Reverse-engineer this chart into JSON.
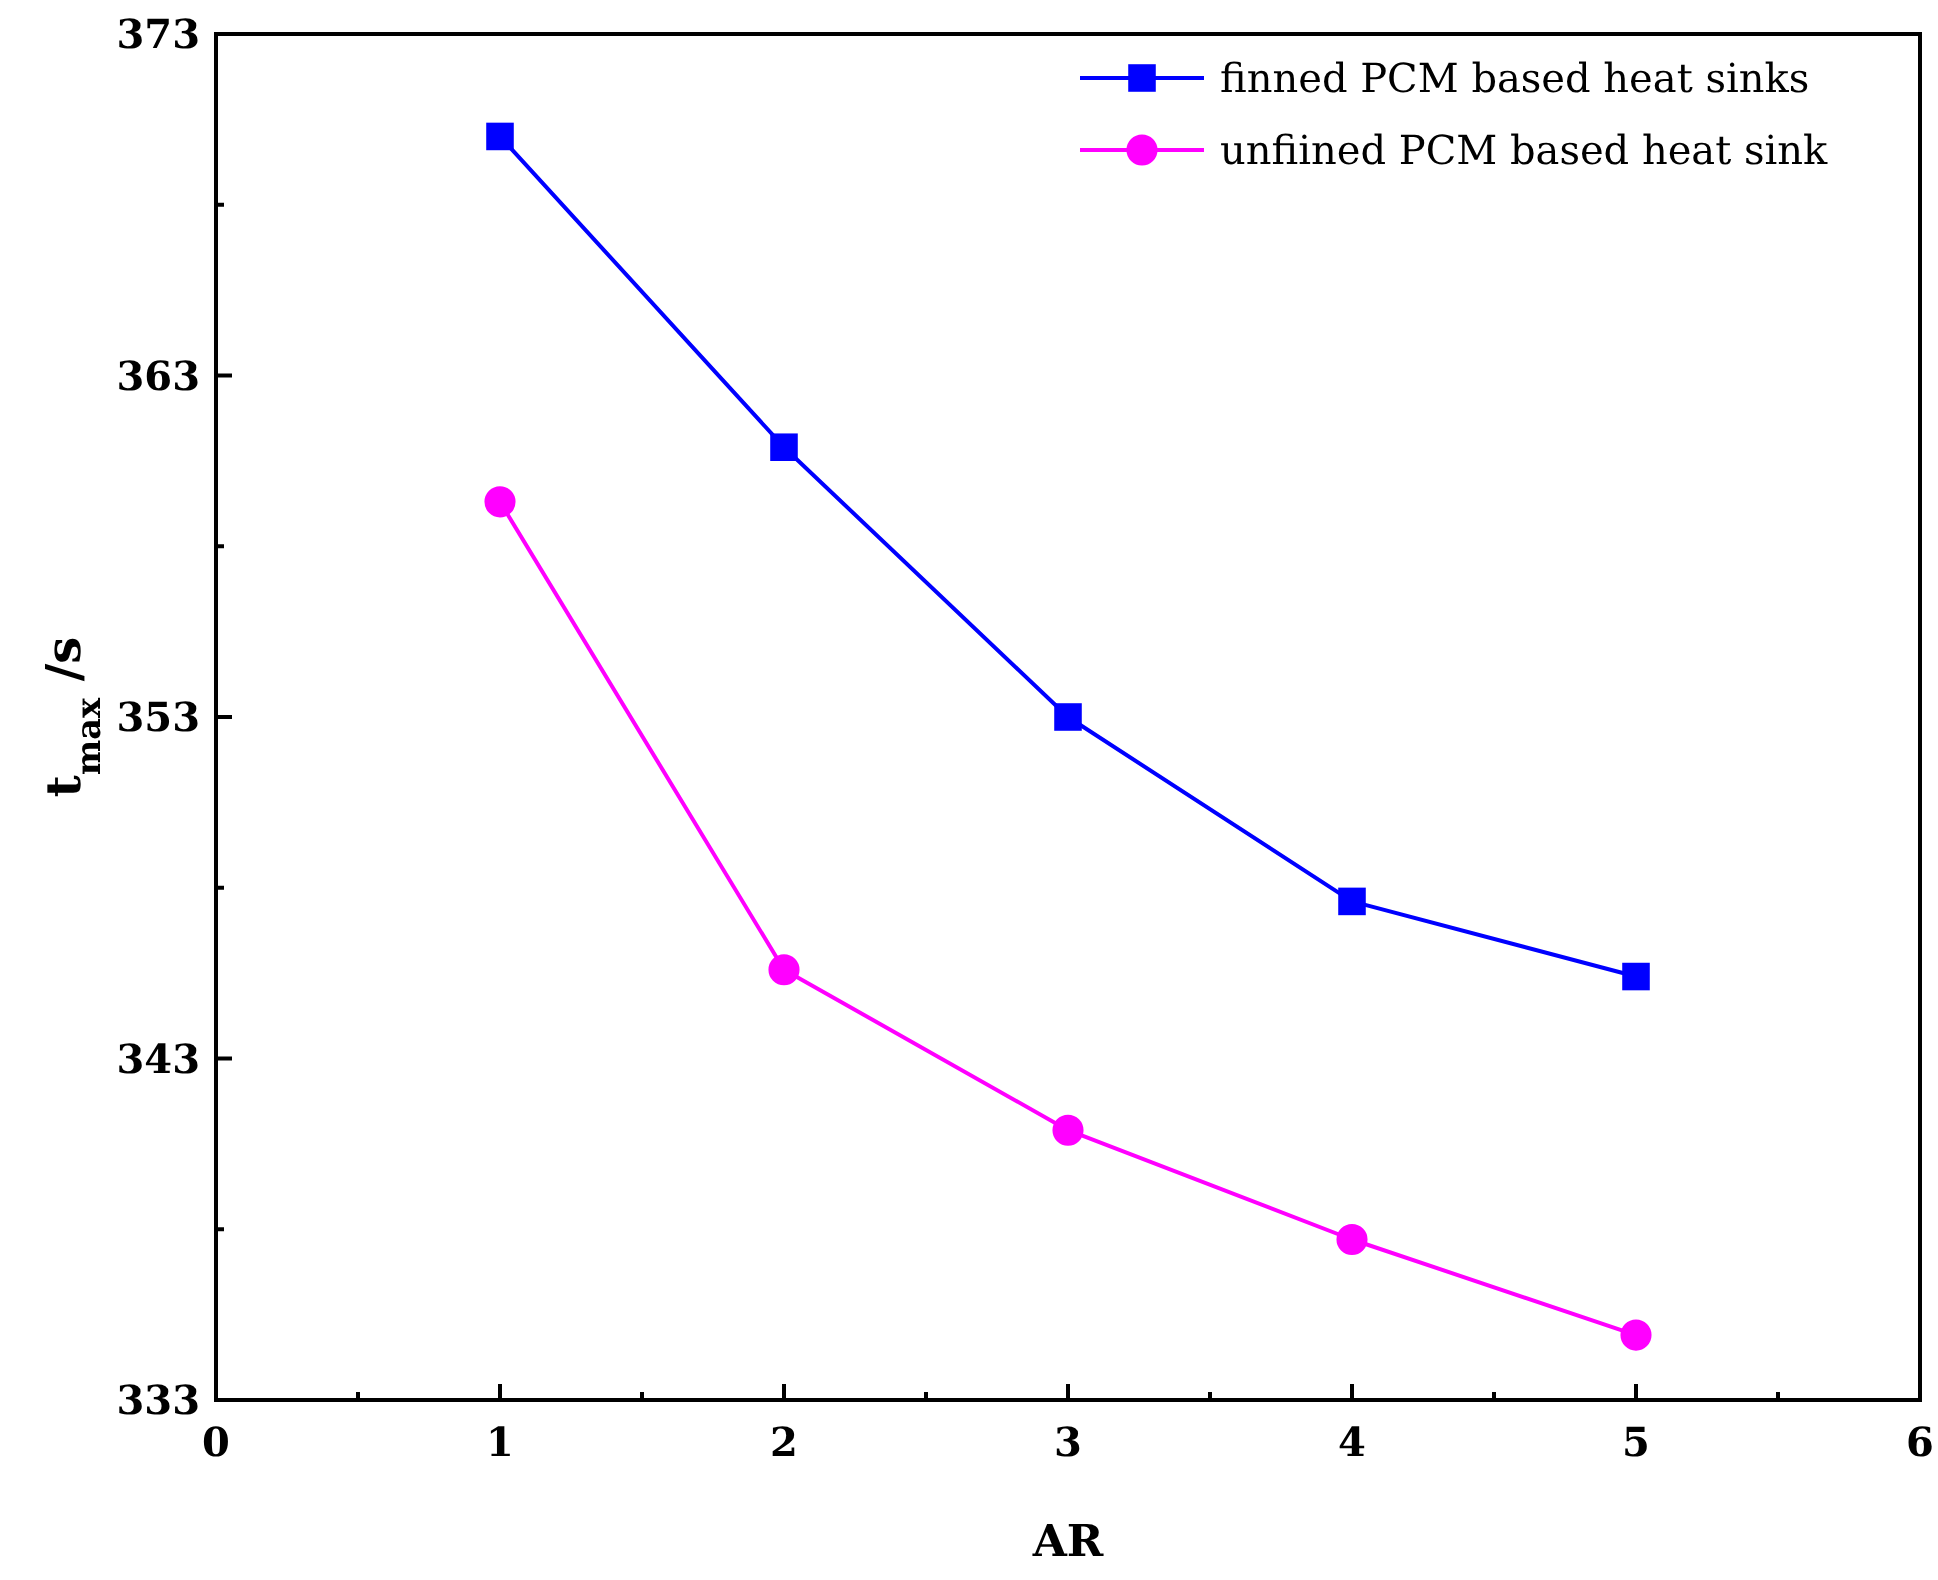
{
  "chart_data": {
    "type": "line",
    "xlabel": "AR",
    "ylabel": "t$_{max}$ /s",
    "x": [
      1,
      2,
      3,
      4,
      5
    ],
    "series": [
      {
        "name": "finned PCM based heat sinks",
        "color": "#0000ff",
        "marker": "square",
        "values": [
          370.0,
          360.9,
          353.0,
          347.6,
          345.4
        ]
      },
      {
        "name": "unfiined PCM based heat sink",
        "color": "#ff00ff",
        "marker": "circle",
        "values": [
          359.3,
          345.6,
          340.9,
          337.7,
          334.9
        ]
      }
    ],
    "xlim": [
      0,
      6
    ],
    "xticks": [
      0,
      {
        "value": 0.5,
        "label": null
      },
      1,
      {
        "value": 1.5,
        "label": null
      },
      2,
      {
        "value": 2.5,
        "label": null
      },
      3,
      {
        "value": 3.5,
        "label": null
      },
      4,
      {
        "value": 4.5,
        "label": null
      },
      5,
      {
        "value": 5.5,
        "label": null
      },
      6
    ],
    "ylim": [
      333,
      373
    ],
    "yticks": [
      333,
      {
        "value": 338,
        "label": null
      },
      343,
      {
        "value": 348,
        "label": null
      },
      353,
      {
        "value": 358,
        "label": null
      },
      363,
      {
        "value": 368,
        "label": null
      },
      373
    ],
    "grid": false,
    "legend": "top right",
    "line_style": "solid"
  }
}
